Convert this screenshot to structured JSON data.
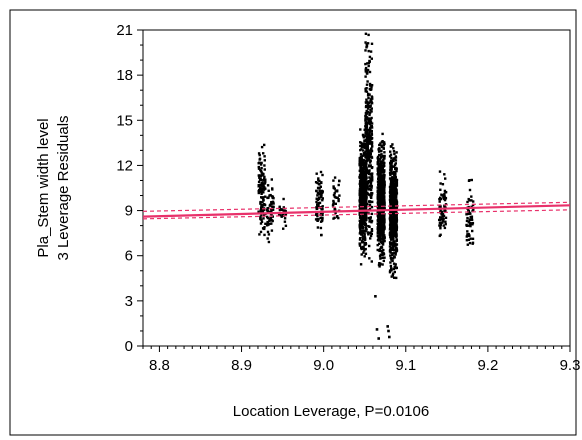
{
  "chart_data": {
    "type": "scatter",
    "title": "",
    "xlabel": "Location Leverage, P=0.0106",
    "ylabel_line1": "Pla_Stem  width level",
    "ylabel_line2": "3 Leverage Residuals",
    "xlim": [
      8.78,
      9.3
    ],
    "ylim": [
      0,
      21
    ],
    "x_ticks": [
      8.8,
      8.9,
      9.0,
      9.1,
      9.2,
      9.3
    ],
    "x_tick_labels": [
      "8.8",
      "8.9",
      "9.0",
      "9.1",
      "9.2",
      "9.3"
    ],
    "y_ticks": [
      0,
      3,
      6,
      9,
      12,
      15,
      18,
      21
    ],
    "y_tick_labels": [
      "0",
      "3",
      "6",
      "9",
      "12",
      "15",
      "18",
      "21"
    ],
    "grid": false,
    "clusters": [
      {
        "x": 8.925,
        "y_min": 6.5,
        "y_max": 13.5,
        "count": 120
      },
      {
        "x": 8.935,
        "y_min": 6.8,
        "y_max": 11.2,
        "count": 60
      },
      {
        "x": 8.95,
        "y_min": 7.4,
        "y_max": 10.2,
        "count": 25
      },
      {
        "x": 8.995,
        "y_min": 7.2,
        "y_max": 12.0,
        "count": 80
      },
      {
        "x": 9.015,
        "y_min": 8.0,
        "y_max": 11.6,
        "count": 35
      },
      {
        "x": 9.048,
        "y_min": 5.4,
        "y_max": 14.5,
        "count": 600
      },
      {
        "x": 9.055,
        "y_min": 5.6,
        "y_max": 21.0,
        "count": 350
      },
      {
        "x": 9.07,
        "y_min": 5.2,
        "y_max": 14.2,
        "count": 700
      },
      {
        "x": 9.085,
        "y_min": 4.5,
        "y_max": 13.5,
        "count": 700
      },
      {
        "x": 9.145,
        "y_min": 6.6,
        "y_max": 11.6,
        "count": 70
      },
      {
        "x": 9.178,
        "y_min": 5.6,
        "y_max": 11.2,
        "count": 60
      }
    ],
    "outliers": [
      {
        "x": 9.063,
        "y": 3.3
      },
      {
        "x": 9.065,
        "y": 1.1
      },
      {
        "x": 9.067,
        "y": 0.5
      },
      {
        "x": 9.078,
        "y": 1.3
      },
      {
        "x": 9.08,
        "y": 0.6
      },
      {
        "x": 9.079,
        "y": 1.0
      }
    ],
    "fit_line": {
      "x": [
        8.78,
        9.3
      ],
      "y": [
        8.6,
        9.35
      ],
      "color": "#e8306a"
    },
    "confidence_upper": {
      "x": [
        8.78,
        9.3
      ],
      "y": [
        8.95,
        9.55
      ]
    },
    "confidence_lower": {
      "x": [
        8.78,
        9.3
      ],
      "y": [
        8.45,
        9.05
      ]
    },
    "colors": {
      "points": "#000000",
      "fit": "#e8306a",
      "frame": "#000000"
    }
  }
}
